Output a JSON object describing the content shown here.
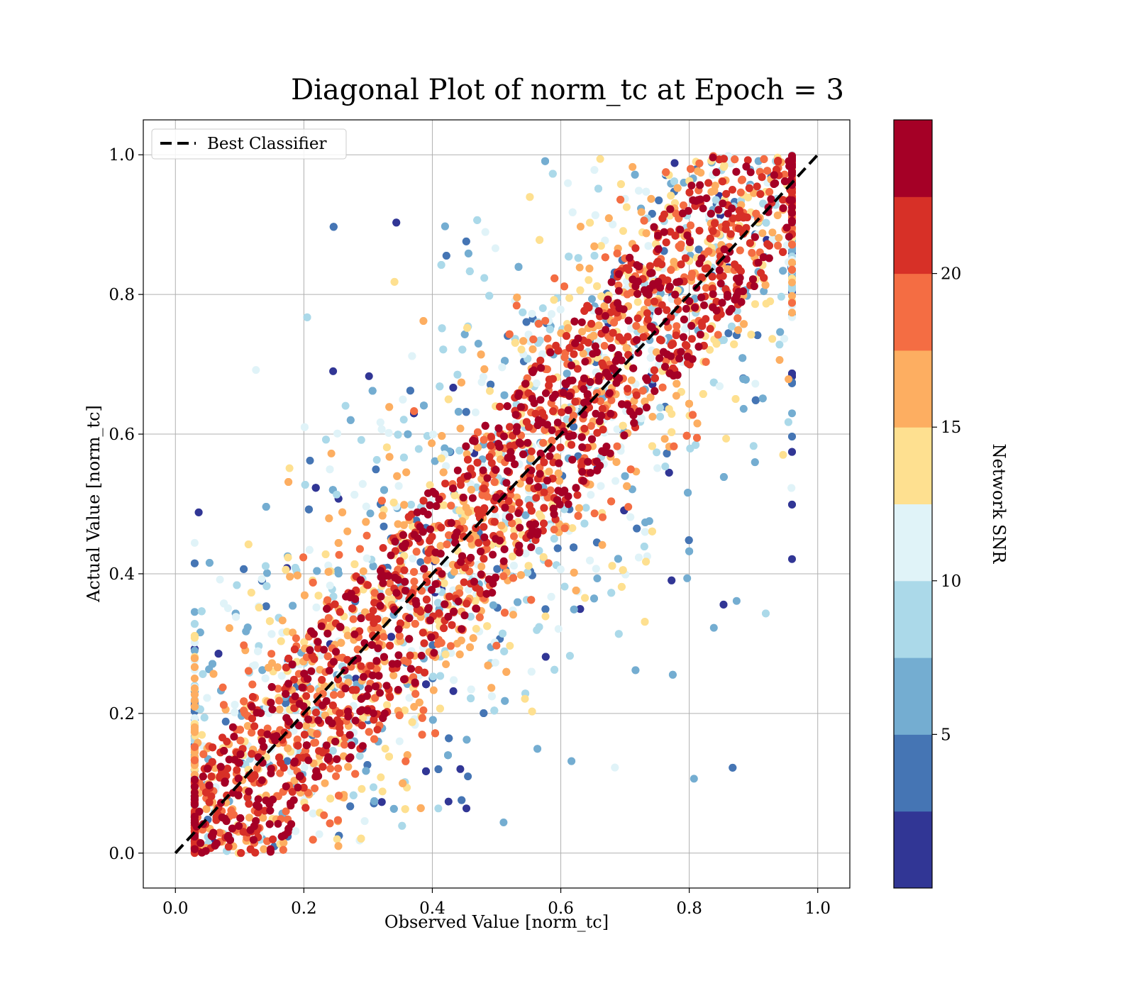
{
  "chart_data": {
    "type": "scatter",
    "title": "Diagonal Plot of norm_tc at Epoch = 3",
    "xlabel": "Observed Value [norm_tc]",
    "ylabel": "Actual Value [norm_tc]",
    "xlim": [
      -0.05,
      1.05
    ],
    "ylim": [
      -0.05,
      1.05
    ],
    "xticks": [
      "0.0",
      "0.2",
      "0.4",
      "0.6",
      "0.8",
      "1.0"
    ],
    "yticks": [
      "0.0",
      "0.2",
      "0.4",
      "0.6",
      "0.8",
      "1.0"
    ],
    "grid": true,
    "legend": {
      "position": "top-left",
      "entries": [
        "Best Classifier"
      ]
    },
    "reference_line": {
      "name": "Best Classifier",
      "x": [
        0.0,
        1.0
      ],
      "y": [
        0.0,
        1.0
      ],
      "style": "dashed",
      "color": "#000000"
    },
    "colorbar": {
      "label": "Network SNR",
      "range": [
        0,
        25
      ],
      "ticks": [
        "5",
        "10",
        "15",
        "20"
      ],
      "tick_values": [
        5,
        10,
        15,
        20
      ],
      "bins": 10,
      "colors": [
        "#313695",
        "#4575b4",
        "#74add1",
        "#abd9e9",
        "#e0f3f8",
        "#fee090",
        "#fdae61",
        "#f46d43",
        "#d73027",
        "#a50026"
      ]
    },
    "series_summary": {
      "x_range": [
        0.03,
        0.96
      ],
      "y_range": [
        0.0,
        1.0
      ],
      "high_snr_band_halfwidth": 0.12,
      "low_snr_spread": 0.45
    }
  }
}
